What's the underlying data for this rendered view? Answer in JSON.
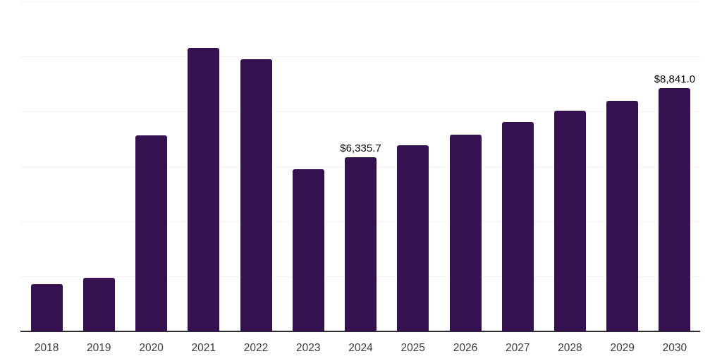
{
  "chart_data": {
    "type": "bar",
    "title": "",
    "xlabel": "",
    "ylabel": "",
    "categories": [
      "2018",
      "2019",
      "2020",
      "2021",
      "2022",
      "2023",
      "2024",
      "2025",
      "2026",
      "2027",
      "2028",
      "2029",
      "2030"
    ],
    "values": [
      1710,
      1940,
      7130,
      10300,
      9890,
      5900,
      6335.7,
      6760,
      7150,
      7615,
      8020,
      8380,
      8841.0
    ],
    "point_labels": {
      "2024": "$6,335.7",
      "2030": "$8,841.0"
    },
    "ylim": [
      0,
      12000
    ],
    "gridline_step": 2000,
    "grid": "horizontal",
    "legend": "none",
    "colors": {
      "bar": "#361150",
      "gridline": "#f2f2f2",
      "axis_line": "#2e2e2e",
      "category_label": "#3c3c3c",
      "point_label": "#0a0a0a",
      "background": "#ffffff"
    }
  }
}
